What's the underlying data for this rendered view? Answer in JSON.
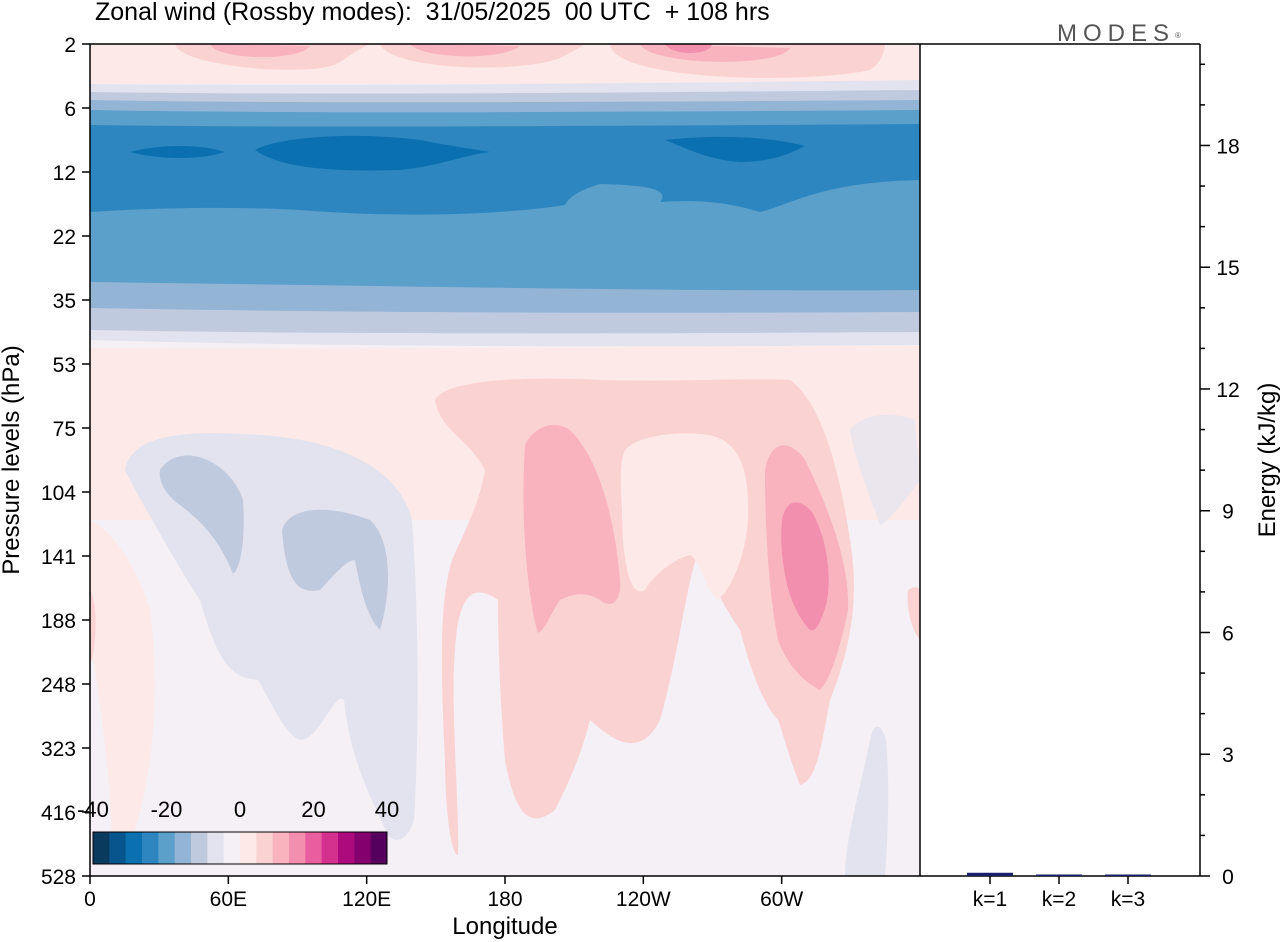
{
  "header": {
    "title": "Zonal wind (Rossby modes):  31/05/2025  00 UTC  + 108 hrs",
    "brand": "MODES",
    "brand_mark": "®"
  },
  "chart_data": [
    {
      "type": "heatmap",
      "title": "Zonal wind (Rossby modes):  31/05/2025  00 UTC  + 108 hrs",
      "xlabel": "Longitude",
      "ylabel": "Pressure levels (hPa)",
      "x_ticks": [
        "0",
        "60E",
        "120E",
        "180",
        "120W",
        "60W"
      ],
      "y_ticks": [
        "2",
        "6",
        "12",
        "22",
        "35",
        "53",
        "75",
        "104",
        "141",
        "188",
        "248",
        "323",
        "416",
        "528"
      ],
      "y_scale": "log, decreasing pressure upward",
      "colorbar": {
        "tick_labels": [
          "-40",
          "-20",
          "0",
          "20",
          "40"
        ],
        "range": [
          -40,
          40
        ],
        "step": 5,
        "colors": [
          "#0b3a5f",
          "#08558e",
          "#0b70b0",
          "#2d86bf",
          "#5b9fcb",
          "#93b4d4",
          "#c0cadf",
          "#e3e3ef",
          "#f4f0f5",
          "#fde9e7",
          "#fbd2d2",
          "#f8b3bf",
          "#f28fae",
          "#ea5e9f",
          "#d4318f",
          "#ad0a7e",
          "#83006e",
          "#55005f"
        ]
      },
      "regions": [
        {
          "level_range": [
            "2",
            "6"
          ],
          "description_value": 10
        },
        {
          "level_range": [
            "6",
            "22"
          ],
          "description_value": -25
        },
        {
          "level_range": [
            "22",
            "53"
          ],
          "description_value": -10
        },
        {
          "level_range": [
            "75",
            "248"
          ],
          "longitude_range": [
            "60E",
            "120E"
          ],
          "value": -10
        },
        {
          "level_range": [
            "104",
            "188"
          ],
          "longitude_range": [
            "60W",
            "40W"
          ],
          "value": 20
        }
      ]
    },
    {
      "type": "bar",
      "categories": [
        "k=1",
        "k=2",
        "k=3"
      ],
      "values": [
        0.08,
        0.03,
        0.02
      ],
      "ylabel": "Energy (kJ/kg)",
      "ylim": [
        0,
        20.5
      ],
      "y_ticks": [
        "0",
        "3",
        "6",
        "9",
        "12",
        "15",
        "18"
      ],
      "bar_color": "#1a1f6b"
    }
  ]
}
